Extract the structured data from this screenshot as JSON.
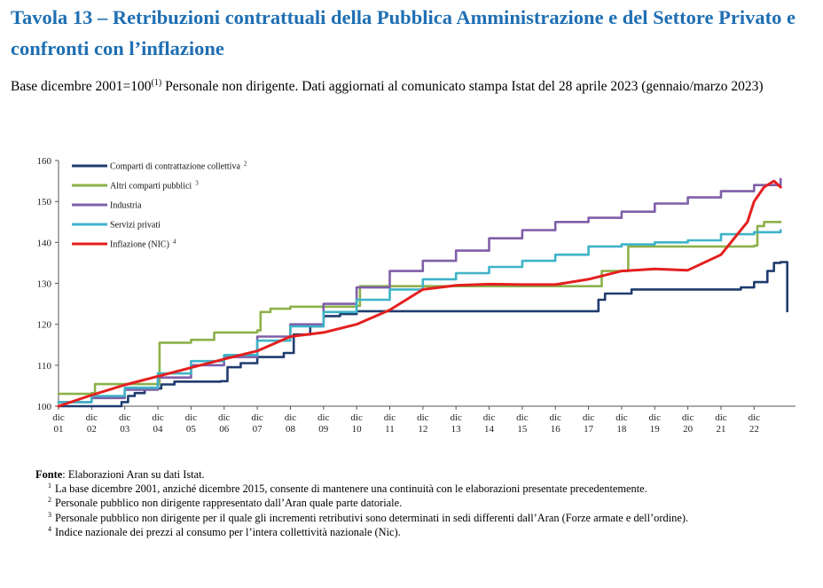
{
  "title": "Tavola 13 – Retribuzioni contrattuali della Pubblica Amministrazione e del Settore Privato e confronti con l’inflazione",
  "subtitle": {
    "part1": "Base dicembre 2001=100",
    "sup": "(1)",
    "part2": " Personale non dirigente. Dati aggiornati al comunicato stampa Istat del 28 aprile 2023 (gennaio/marzo 2023)"
  },
  "chart_data": {
    "type": "line",
    "ylim": [
      100,
      160
    ],
    "yticks": [
      100,
      110,
      120,
      130,
      140,
      150,
      160
    ],
    "xlim": [
      2001,
      2023.25
    ],
    "x_ticks": [
      {
        "line1": "dic",
        "line2": "01"
      },
      {
        "line1": "dic",
        "line2": "02"
      },
      {
        "line1": "dic",
        "line2": "03"
      },
      {
        "line1": "dic",
        "line2": "04"
      },
      {
        "line1": "dic",
        "line2": "05"
      },
      {
        "line1": "dic",
        "line2": "06"
      },
      {
        "line1": "dic",
        "line2": "07"
      },
      {
        "line1": "dic",
        "line2": "08"
      },
      {
        "line1": "dic",
        "line2": "09"
      },
      {
        "line1": "dic",
        "line2": "10"
      },
      {
        "line1": "dic",
        "line2": "11"
      },
      {
        "line1": "dic",
        "line2": "12"
      },
      {
        "line1": "dic",
        "line2": "13"
      },
      {
        "line1": "dic",
        "line2": "14"
      },
      {
        "line1": "dic",
        "line2": "15"
      },
      {
        "line1": "dic",
        "line2": "16"
      },
      {
        "line1": "dic",
        "line2": "17"
      },
      {
        "line1": "dic",
        "line2": "18"
      },
      {
        "line1": "dic",
        "line2": "19"
      },
      {
        "line1": "dic",
        "line2": "20"
      },
      {
        "line1": "dic",
        "line2": "21"
      },
      {
        "line1": "dic",
        "line2": "22"
      }
    ],
    "legend_position": "top-left",
    "series": [
      {
        "name": "Comparti di contrattazione collettiva",
        "note": "2",
        "color": "#1f3c6e",
        "step": true,
        "points": [
          [
            2001,
            100
          ],
          [
            2002.7,
            100
          ],
          [
            2002.9,
            101
          ],
          [
            2003.1,
            102.5
          ],
          [
            2003.3,
            103.2
          ],
          [
            2003.6,
            104.3
          ],
          [
            2004.1,
            105.3
          ],
          [
            2004.5,
            106
          ],
          [
            2005.9,
            106.1
          ],
          [
            2006.1,
            109.5
          ],
          [
            2006.5,
            110.5
          ],
          [
            2007.0,
            112
          ],
          [
            2007.8,
            113
          ],
          [
            2008.1,
            117.5
          ],
          [
            2008.6,
            119.5
          ],
          [
            2009.0,
            122
          ],
          [
            2009.5,
            122.5
          ],
          [
            2010.0,
            123.2
          ],
          [
            2023.0,
            123.2
          ],
          [
            2017.2,
            123.2
          ],
          [
            2017.3,
            126
          ],
          [
            2017.5,
            127.5
          ],
          [
            2018.3,
            128.5
          ],
          [
            2021.3,
            128.5
          ],
          [
            2021.6,
            129
          ],
          [
            2022.0,
            130.3
          ],
          [
            2022.4,
            133
          ],
          [
            2022.6,
            135
          ],
          [
            2022.8,
            135.2
          ]
        ]
      },
      {
        "name": "Altri comparti pubblici",
        "note": "3",
        "color": "#8db04a",
        "step": true,
        "points": [
          [
            2001,
            103
          ],
          [
            2002,
            103.2
          ],
          [
            2002.1,
            105.4
          ],
          [
            2004,
            105.4
          ],
          [
            2004.05,
            115.5
          ],
          [
            2005.0,
            116.2
          ],
          [
            2005.7,
            118
          ],
          [
            2007.0,
            118.5
          ],
          [
            2007.1,
            123
          ],
          [
            2007.4,
            123.8
          ],
          [
            2008.0,
            124.3
          ],
          [
            2010.0,
            124.5
          ],
          [
            2010.1,
            129.3
          ],
          [
            2017.3,
            129.3
          ],
          [
            2017.4,
            133
          ],
          [
            2018.1,
            133
          ],
          [
            2018.2,
            139
          ],
          [
            2022.0,
            139.2
          ],
          [
            2022.1,
            144
          ],
          [
            2022.3,
            145
          ],
          [
            2022.8,
            145
          ]
        ]
      },
      {
        "name": "Industria",
        "note": "",
        "color": "#7f5fa8",
        "step": true,
        "points": [
          [
            2001,
            101
          ],
          [
            2002,
            102
          ],
          [
            2003,
            104
          ],
          [
            2004,
            107
          ],
          [
            2005,
            110
          ],
          [
            2006,
            112
          ],
          [
            2007,
            117
          ],
          [
            2008,
            120
          ],
          [
            2009,
            125
          ],
          [
            2010,
            129
          ],
          [
            2011,
            133
          ],
          [
            2012,
            135.5
          ],
          [
            2013,
            138
          ],
          [
            2014,
            141
          ],
          [
            2015,
            143
          ],
          [
            2016,
            145
          ],
          [
            2017,
            146
          ],
          [
            2018,
            147.5
          ],
          [
            2019,
            149.5
          ],
          [
            2020,
            151
          ],
          [
            2021,
            152.5
          ],
          [
            2022,
            154
          ],
          [
            2022.8,
            155.5
          ]
        ]
      },
      {
        "name": "Servizi privati",
        "note": "",
        "color": "#3eb3c8",
        "step": true,
        "points": [
          [
            2001,
            101
          ],
          [
            2002,
            102.5
          ],
          [
            2003,
            104.5
          ],
          [
            2004,
            108
          ],
          [
            2005,
            111
          ],
          [
            2006,
            112.5
          ],
          [
            2007,
            116
          ],
          [
            2008,
            119.5
          ],
          [
            2009,
            123
          ],
          [
            2010,
            126
          ],
          [
            2011,
            128.5
          ],
          [
            2012,
            131
          ],
          [
            2013,
            132.5
          ],
          [
            2014,
            134
          ],
          [
            2015,
            135.5
          ],
          [
            2016,
            137
          ],
          [
            2017,
            139
          ],
          [
            2018,
            139.5
          ],
          [
            2019,
            140
          ],
          [
            2020,
            140.5
          ],
          [
            2021,
            142
          ],
          [
            2022,
            142.5
          ],
          [
            2022.8,
            143
          ]
        ]
      },
      {
        "name": "Inflazione (NIC)",
        "note": "4",
        "color": "#e41f1f",
        "step": false,
        "points": [
          [
            2001,
            100
          ],
          [
            2002,
            102.7
          ],
          [
            2003,
            105.2
          ],
          [
            2004,
            107.3
          ],
          [
            2005,
            109.4
          ],
          [
            2006,
            111.5
          ],
          [
            2007,
            113.5
          ],
          [
            2008,
            117
          ],
          [
            2009,
            118
          ],
          [
            2010,
            120
          ],
          [
            2011,
            123.5
          ],
          [
            2012,
            128.5
          ],
          [
            2013,
            129.5
          ],
          [
            2014,
            129.8
          ],
          [
            2015,
            129.7
          ],
          [
            2016,
            129.7
          ],
          [
            2017,
            131
          ],
          [
            2018,
            133
          ],
          [
            2019,
            133.5
          ],
          [
            2020,
            133.2
          ],
          [
            2021,
            137
          ],
          [
            2021.5,
            142
          ],
          [
            2021.8,
            145
          ],
          [
            2022.0,
            150
          ],
          [
            2022.3,
            153.5
          ],
          [
            2022.6,
            155
          ],
          [
            2022.8,
            153.5
          ]
        ]
      }
    ]
  },
  "notes": {
    "fonte_label": "Fonte",
    "fonte_text": ": Elaborazioni Aran su dati Istat.",
    "items": [
      {
        "mark": "1",
        "text": "La base dicembre 2001, anziché dicembre 2015, consente di mantenere una continuità con le elaborazioni presentate precedentemente."
      },
      {
        "mark": "2",
        "text": "Personale pubblico non dirigente rappresentato dall’Aran quale parte datoriale."
      },
      {
        "mark": "3",
        "text": "Personale pubblico non dirigente per il quale gli incrementi retributivi sono determinati in sedi differenti dall’Aran (Forze armate e dell’ordine)."
      },
      {
        "mark": "4",
        "text": "Indice nazionale dei prezzi al consumo per l’intera collettività nazionale (Nic)."
      }
    ]
  }
}
